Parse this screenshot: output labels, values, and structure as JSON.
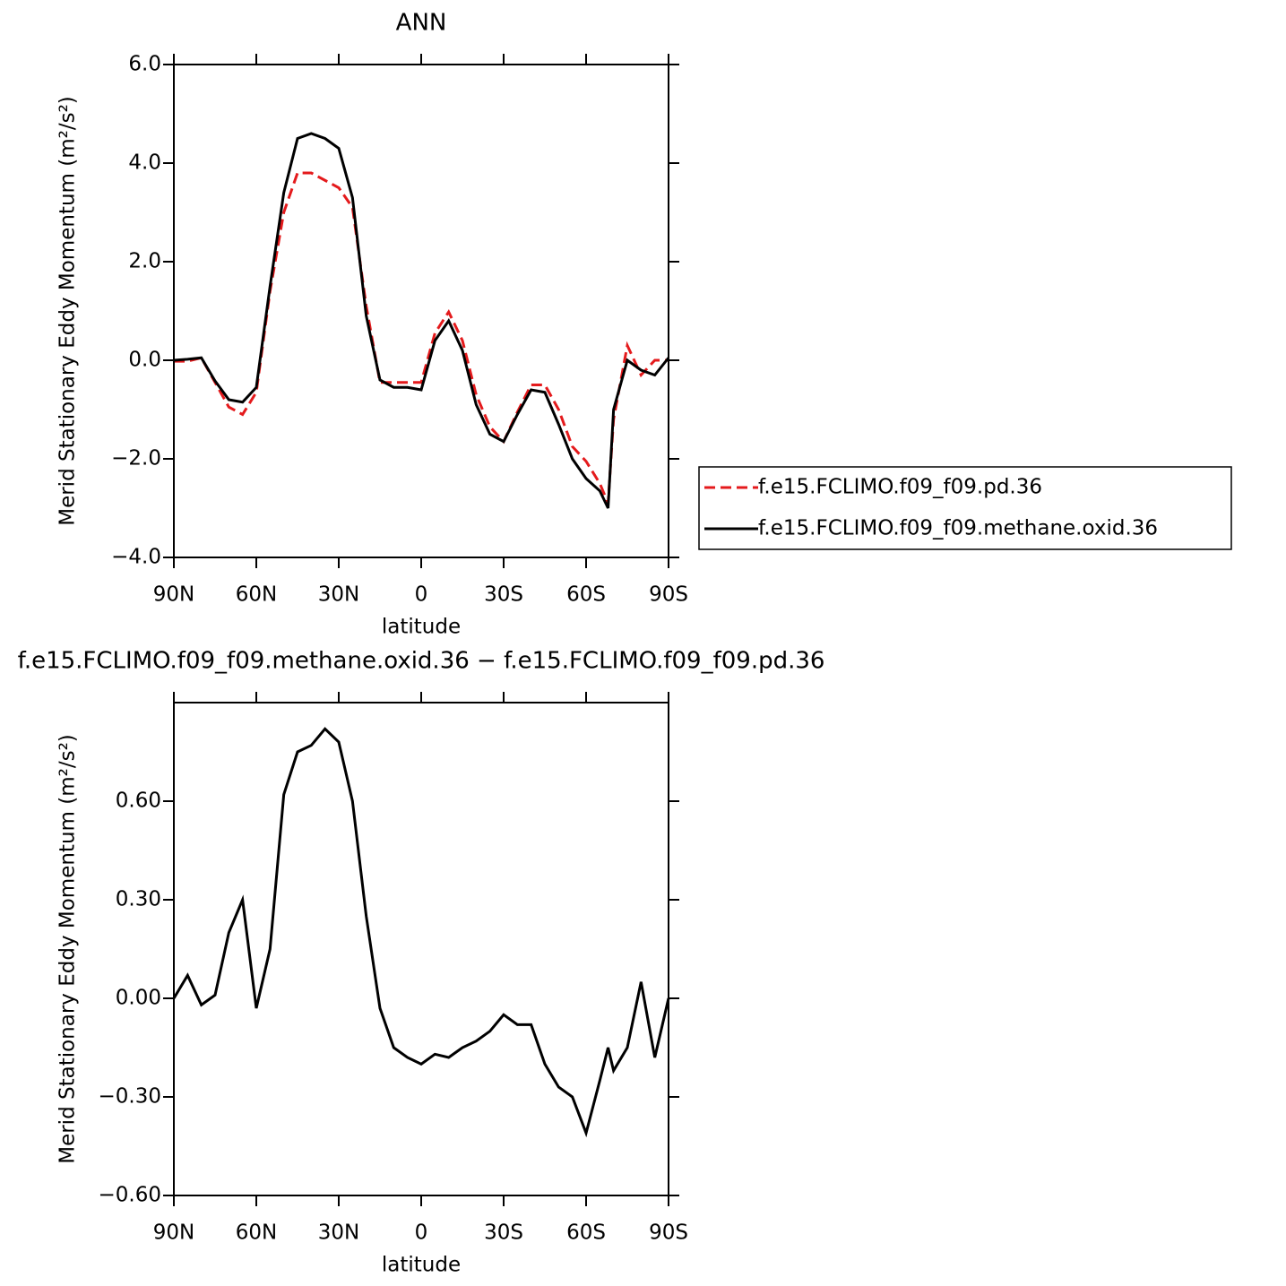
{
  "chart_data": [
    {
      "type": "line",
      "title": "ANN",
      "xlabel": "latitude",
      "ylabel": "Merid Stationary Eddy Momentum (m²/s²)",
      "x": [
        90,
        85,
        80,
        75,
        70,
        65,
        60,
        55,
        50,
        45,
        40,
        35,
        30,
        25,
        20,
        15,
        10,
        5,
        0,
        -5,
        -10,
        -15,
        -20,
        -25,
        -30,
        -35,
        -40,
        -45,
        -50,
        -55,
        -60,
        -65,
        -68,
        -70,
        -75,
        -80,
        -85,
        -90
      ],
      "xlim": [
        90,
        -90
      ],
      "xticks": [
        {
          "value": 90,
          "label": "90N"
        },
        {
          "value": 60,
          "label": "60N"
        },
        {
          "value": 30,
          "label": "30N"
        },
        0,
        {
          "value": -30,
          "label": "30S"
        },
        {
          "value": -60,
          "label": "60S"
        },
        {
          "value": -90,
          "label": "90S"
        }
      ],
      "ylim": [
        -4,
        6
      ],
      "yticks": [
        {
          "value": -4,
          "label": "−4.0"
        },
        {
          "value": -2,
          "label": "−2.0"
        },
        {
          "value": 0,
          "label": "0.0"
        },
        {
          "value": 2,
          "label": "2.0"
        },
        {
          "value": 4,
          "label": "4.0"
        },
        {
          "value": 6,
          "label": "6.0"
        }
      ],
      "legend": "right",
      "series": [
        {
          "name": "f.e15.FCLIMO.f09_f09.pd.36",
          "color": "#e41a1c",
          "line_style": "dashed",
          "values": [
            -0.02,
            -0.02,
            0.05,
            -0.45,
            -0.95,
            -1.1,
            -0.65,
            1.4,
            3.0,
            3.8,
            3.8,
            3.65,
            3.5,
            3.1,
            1.1,
            -0.45,
            -0.45,
            -0.45,
            -0.45,
            0.55,
            0.98,
            0.4,
            -0.7,
            -1.35,
            -1.65,
            -1.05,
            -0.5,
            -0.5,
            -1.0,
            -1.75,
            -2.05,
            -2.5,
            -2.9,
            -1.2,
            0.3,
            -0.3,
            0.0,
            0.0
          ]
        },
        {
          "name": "f.e15.FCLIMO.f09_f09.methane.oxid.36",
          "color": "#000000",
          "line_style": "solid",
          "values": [
            0.0,
            0.02,
            0.05,
            -0.42,
            -0.8,
            -0.85,
            -0.55,
            1.5,
            3.4,
            4.5,
            4.6,
            4.5,
            4.3,
            3.3,
            0.9,
            -0.4,
            -0.55,
            -0.55,
            -0.6,
            0.4,
            0.8,
            0.2,
            -0.9,
            -1.5,
            -1.65,
            -1.1,
            -0.6,
            -0.65,
            -1.3,
            -2.0,
            -2.4,
            -2.65,
            -3.0,
            -1.0,
            0.0,
            -0.2,
            -0.3,
            0.05
          ]
        }
      ]
    },
    {
      "type": "line",
      "title": "f.e15.FCLIMO.f09_f09.methane.oxid.36 − f.e15.FCLIMO.f09_f09.pd.36",
      "xlabel": "latitude",
      "ylabel": "Merid Stationary Eddy Momentum (m²/s²)",
      "x": [
        90,
        85,
        80,
        75,
        70,
        65,
        60,
        55,
        50,
        45,
        40,
        35,
        30,
        25,
        20,
        15,
        10,
        5,
        0,
        -5,
        -10,
        -15,
        -20,
        -25,
        -30,
        -35,
        -40,
        -45,
        -50,
        -55,
        -60,
        -65,
        -68,
        -70,
        -75,
        -80,
        -85,
        -90
      ],
      "xlim": [
        90,
        -90
      ],
      "xticks": [
        {
          "value": 90,
          "label": "90N"
        },
        {
          "value": 60,
          "label": "60N"
        },
        {
          "value": 30,
          "label": "30N"
        },
        0,
        {
          "value": -30,
          "label": "30S"
        },
        {
          "value": -60,
          "label": "60S"
        },
        {
          "value": -90,
          "label": "90S"
        }
      ],
      "ylim": [
        -0.6,
        0.9
      ],
      "yticks": [
        {
          "value": -0.6,
          "label": "−0.60"
        },
        {
          "value": -0.3,
          "label": "−0.30"
        },
        {
          "value": 0,
          "label": "0.00"
        },
        {
          "value": 0.3,
          "label": "0.30"
        },
        {
          "value": 0.6,
          "label": "0.60"
        }
      ],
      "series": [
        {
          "color": "#000000",
          "line_style": "solid",
          "values": [
            0.0,
            0.07,
            -0.02,
            0.01,
            0.2,
            0.3,
            -0.03,
            0.15,
            0.62,
            0.75,
            0.77,
            0.82,
            0.78,
            0.6,
            0.25,
            -0.03,
            -0.15,
            -0.18,
            -0.2,
            -0.17,
            -0.18,
            -0.15,
            -0.13,
            -0.1,
            -0.05,
            -0.08,
            -0.08,
            -0.2,
            -0.27,
            -0.3,
            -0.41,
            -0.25,
            -0.15,
            -0.22,
            -0.15,
            0.05,
            -0.18,
            0.0
          ]
        }
      ]
    }
  ]
}
